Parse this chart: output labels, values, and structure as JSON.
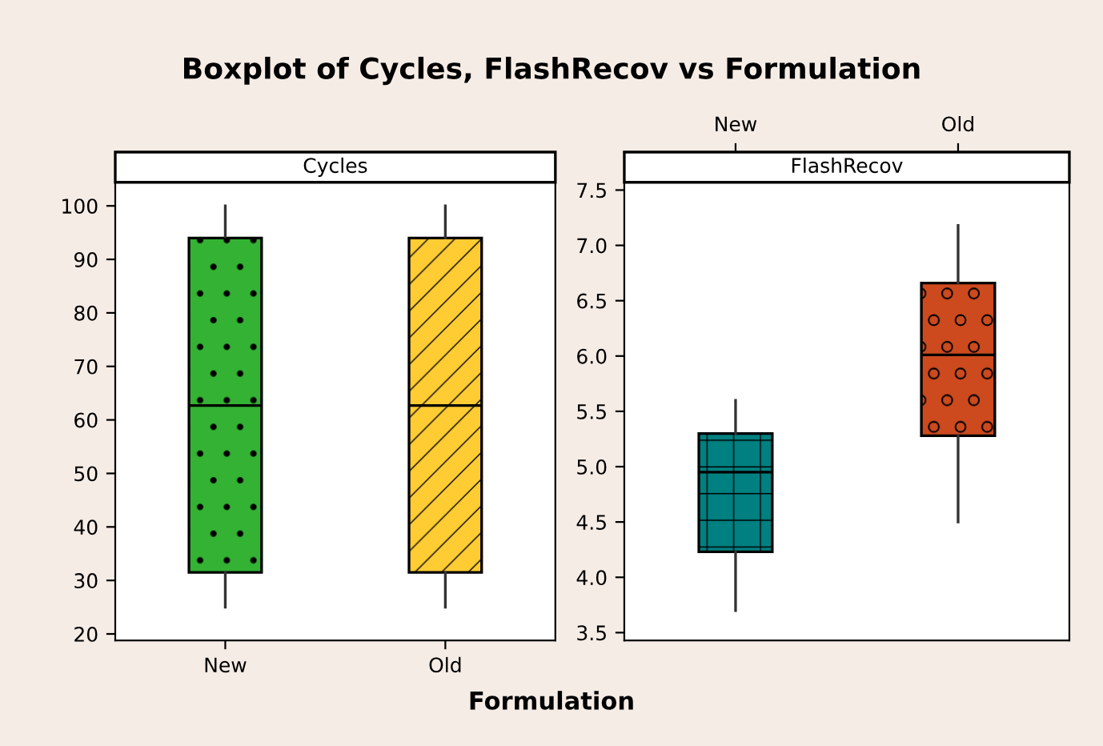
{
  "chart_data": [
    {
      "type": "box",
      "title": "Boxplot of Cycles, FlashRecov vs Formulation",
      "subtitle": "Cycles",
      "xlabel": "Formulation",
      "categories": [
        "New",
        "Old"
      ],
      "colors": [
        "#33b233",
        "#ffcc33"
      ],
      "ylim": [
        18.8,
        104.4
      ],
      "yticks": [
        20,
        30,
        40,
        50,
        60,
        70,
        80,
        90,
        100
      ],
      "boxes": [
        {
          "low": 25,
          "q1": 31.5,
          "median": 62.7,
          "q3": 94,
          "high": 100
        },
        {
          "low": 25,
          "q1": 31.5,
          "median": 62.7,
          "q3": 94,
          "high": 100
        }
      ]
    },
    {
      "type": "box",
      "subtitle": "FlashRecov",
      "categories": [
        "New",
        "Old"
      ],
      "colors": [
        "#008080",
        "#cc4a1e"
      ],
      "ylim": [
        3.43,
        7.57
      ],
      "yticks": [
        {
          "value": 3.5,
          "label": "3.5"
        },
        {
          "value": 4.0,
          "label": "4.0"
        },
        {
          "value": 4.5,
          "label": "4.5"
        },
        {
          "value": 5.0,
          "label": "5.0"
        },
        {
          "value": 5.5,
          "label": "5.5"
        },
        {
          "value": 6.0,
          "label": "6.0"
        },
        {
          "value": 6.5,
          "label": "6.5"
        },
        {
          "value": 7.0,
          "label": "7.0"
        },
        {
          "value": 7.5,
          "label": "7.5"
        }
      ],
      "boxes": [
        {
          "low": 3.7,
          "q1": 4.23,
          "median": 4.95,
          "q3": 5.3,
          "high": 5.6
        },
        {
          "low": 4.5,
          "q1": 5.28,
          "median": 6.01,
          "q3": 6.66,
          "high": 7.18
        }
      ]
    }
  ]
}
